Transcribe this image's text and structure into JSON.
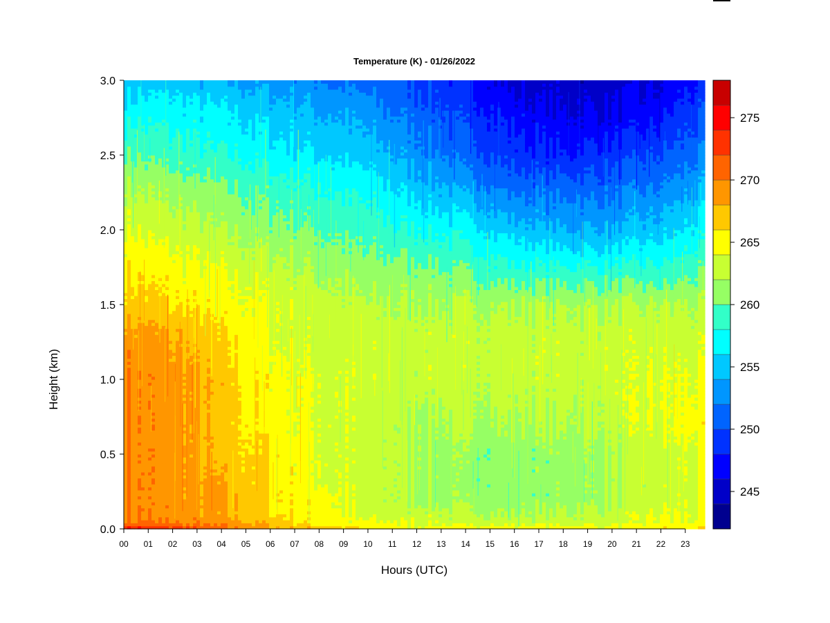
{
  "chart_data": {
    "type": "heatmap",
    "title": "Temperature (K) - 01/26/2022",
    "xlabel": "Hours (UTC)",
    "ylabel": "Height (km)",
    "x_ticks": [
      "00",
      "01",
      "02",
      "03",
      "04",
      "05",
      "06",
      "07",
      "08",
      "09",
      "10",
      "11",
      "12",
      "13",
      "14",
      "15",
      "16",
      "17",
      "18",
      "19",
      "20",
      "21",
      "22",
      "23"
    ],
    "y_ticks": [
      "0.0",
      "0.5",
      "1.0",
      "1.5",
      "2.0",
      "2.5",
      "3.0"
    ],
    "xlim": [
      0,
      23.8
    ],
    "ylim": [
      0.0,
      3.0
    ],
    "colorbar": {
      "levels": [
        242,
        244,
        246,
        248,
        250,
        252,
        254,
        256,
        258,
        260,
        262,
        264,
        266,
        268,
        270,
        272,
        274,
        276,
        278
      ],
      "colors": [
        "#00008f",
        "#0000c8",
        "#0000ff",
        "#0032ff",
        "#0064ff",
        "#0096ff",
        "#00c8ff",
        "#00ffff",
        "#32ffc8",
        "#96ff64",
        "#c8ff32",
        "#ffff00",
        "#ffc800",
        "#ff9600",
        "#ff6400",
        "#ff3200",
        "#ff0000",
        "#c80000",
        "#800000"
      ],
      "tick_labels": [
        "245",
        "250",
        "255",
        "260",
        "265",
        "270",
        "275"
      ],
      "tick_values": [
        245,
        250,
        255,
        260,
        265,
        270,
        275
      ]
    },
    "grid_hours": [
      0,
      2,
      4,
      6,
      8,
      10,
      12,
      14,
      16,
      18,
      20,
      22,
      23.8
    ],
    "grid_heights_km": [
      0.0,
      0.02,
      0.05,
      0.1,
      0.2,
      0.3,
      0.5,
      0.7,
      1.0,
      1.3,
      1.5,
      1.7,
      2.0,
      2.3,
      2.5,
      2.8,
      3.0
    ],
    "values": [
      [
        276,
        274,
        271,
        269,
        268,
        266,
        265,
        265,
        265,
        265,
        265,
        265,
        266
      ],
      [
        272,
        271,
        270,
        268,
        266,
        265,
        264,
        264,
        264,
        264,
        264,
        265,
        265
      ],
      [
        270,
        270,
        269,
        267,
        265,
        264,
        264,
        263,
        263,
        263,
        263,
        264,
        264
      ],
      [
        270,
        269,
        268,
        266,
        265,
        263,
        263,
        262,
        262,
        262,
        263,
        264,
        264
      ],
      [
        270,
        269,
        268,
        266,
        265,
        263,
        262,
        261,
        261,
        261,
        262,
        263,
        264
      ],
      [
        270,
        269,
        268,
        266,
        264,
        263,
        262,
        261,
        261,
        261,
        262,
        263,
        264
      ],
      [
        270,
        269,
        267,
        266,
        264,
        263,
        262,
        261,
        261,
        261,
        262,
        263,
        264
      ],
      [
        270,
        269,
        267,
        265,
        264,
        263,
        262,
        262,
        262,
        262,
        263,
        264,
        265
      ],
      [
        270,
        269,
        267,
        265,
        264,
        263,
        263,
        263,
        263,
        263,
        263,
        264,
        264
      ],
      [
        269,
        268,
        266,
        264,
        263,
        263,
        263,
        263,
        263,
        263,
        263,
        263,
        263
      ],
      [
        267,
        266,
        265,
        264,
        263,
        262,
        262,
        262,
        262,
        262,
        262,
        262,
        262
      ],
      [
        266,
        265,
        264,
        263,
        262,
        261,
        261,
        260,
        259,
        259,
        259,
        259,
        260
      ],
      [
        264,
        263,
        262,
        261,
        260,
        259,
        258,
        257,
        255,
        254,
        254,
        255,
        257
      ],
      [
        262,
        261,
        260,
        259,
        258,
        257,
        255,
        253,
        251,
        251,
        251,
        252,
        254
      ],
      [
        260,
        259,
        258,
        257,
        256,
        255,
        253,
        251,
        249,
        248,
        249,
        250,
        252
      ],
      [
        257,
        257,
        256,
        255,
        254,
        253,
        251,
        249,
        247,
        246,
        246,
        247,
        250
      ],
      [
        255,
        255,
        254,
        253,
        252,
        251,
        250,
        248,
        245,
        245,
        245,
        246,
        248
      ]
    ]
  }
}
